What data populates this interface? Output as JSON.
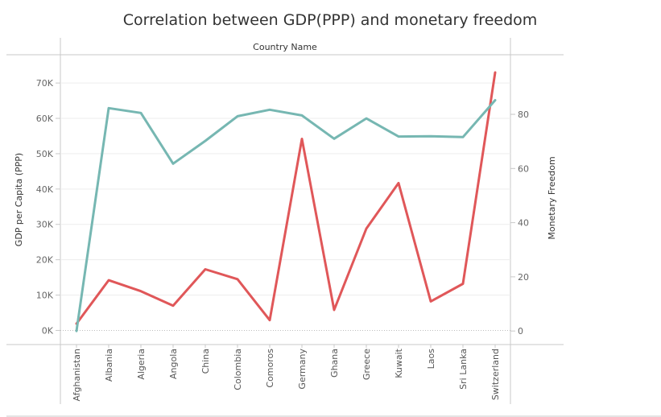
{
  "chart_data": {
    "type": "line",
    "title": "Correlation between GDP(PPP) and monetary freedom",
    "header": "Country Name",
    "categories": [
      "Afghanistan",
      "Albania",
      "Algeria",
      "Angola",
      "China",
      "Colombia",
      "Comoros",
      "Germany",
      "Ghana",
      "Greece",
      "Kuwait",
      "Laos",
      "Sri Lanka",
      "Switzerland"
    ],
    "left_axis": {
      "label": "GDP per Capita (PPP)",
      "ylim": [
        -4000,
        78000
      ],
      "ticks": [
        0,
        10000,
        20000,
        30000,
        40000,
        50000,
        60000,
        70000
      ],
      "tick_labels": [
        "0K",
        "10K",
        "20K",
        "30K",
        "40K",
        "50K",
        "60K",
        "70K"
      ]
    },
    "right_axis": {
      "label": "Monetary Freedom",
      "ylim": [
        -5,
        102
      ],
      "ticks": [
        0,
        20,
        40,
        60,
        80
      ],
      "tick_labels": [
        "0",
        "20",
        "40",
        "60",
        "80"
      ]
    },
    "grid": true,
    "series": [
      {
        "axis": "left",
        "color": "#e05759",
        "values": [
          1900,
          14200,
          11100,
          7000,
          17300,
          14500,
          2900,
          54200,
          5800,
          28800,
          41700,
          8200,
          13200,
          73000
        ]
      },
      {
        "axis": "right",
        "color": "#76b7b2",
        "values": [
          0,
          82.3,
          80.5,
          61.8,
          70.2,
          79.3,
          81.7,
          79.6,
          71.0,
          78.5,
          71.8,
          71.9,
          71.6,
          85.2
        ]
      }
    ]
  }
}
